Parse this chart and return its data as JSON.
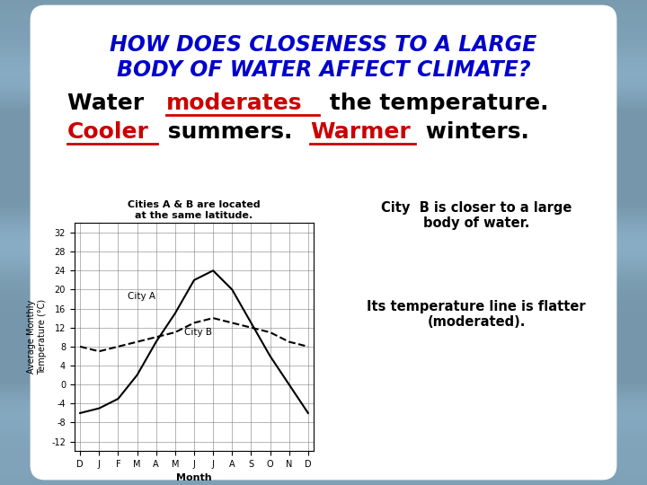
{
  "title_line1": "HOW DOES CLOSENESS TO A LARGE",
  "title_line2": "BODY OF WATER AFFECT CLIMATE?",
  "title_color": "#0000cc",
  "title_fontsize": 17,
  "body_color": "black",
  "body_fontsize": 18,
  "graph_title": "Cities A & B are located\nat the same latitude.",
  "months": [
    "D",
    "J",
    "F",
    "M",
    "A",
    "M",
    "J",
    "J",
    "A",
    "S",
    "O",
    "N",
    "D"
  ],
  "city_a_temps": [
    -6,
    -5,
    -3,
    2,
    9,
    15,
    22,
    24,
    20,
    13,
    6,
    0,
    -6
  ],
  "city_b_temps": [
    8,
    7,
    8,
    9,
    10,
    11,
    13,
    14,
    13,
    12,
    11,
    9,
    8
  ],
  "yticks": [
    -12,
    -8,
    -4,
    0,
    4,
    8,
    12,
    16,
    20,
    24,
    28,
    32
  ],
  "ylabel": "Average Monthly\nTemperature (°C)",
  "xlabel": "Month",
  "right_text1": "City  B is closer to a large\nbody of water.",
  "right_text2": "Its temperature line is flatter\n(moderated).",
  "bg_color": "#8ab4c8",
  "panel_color": "white",
  "city_a_label": "City A",
  "city_b_label": "City B",
  "red_color": "#cc0000"
}
